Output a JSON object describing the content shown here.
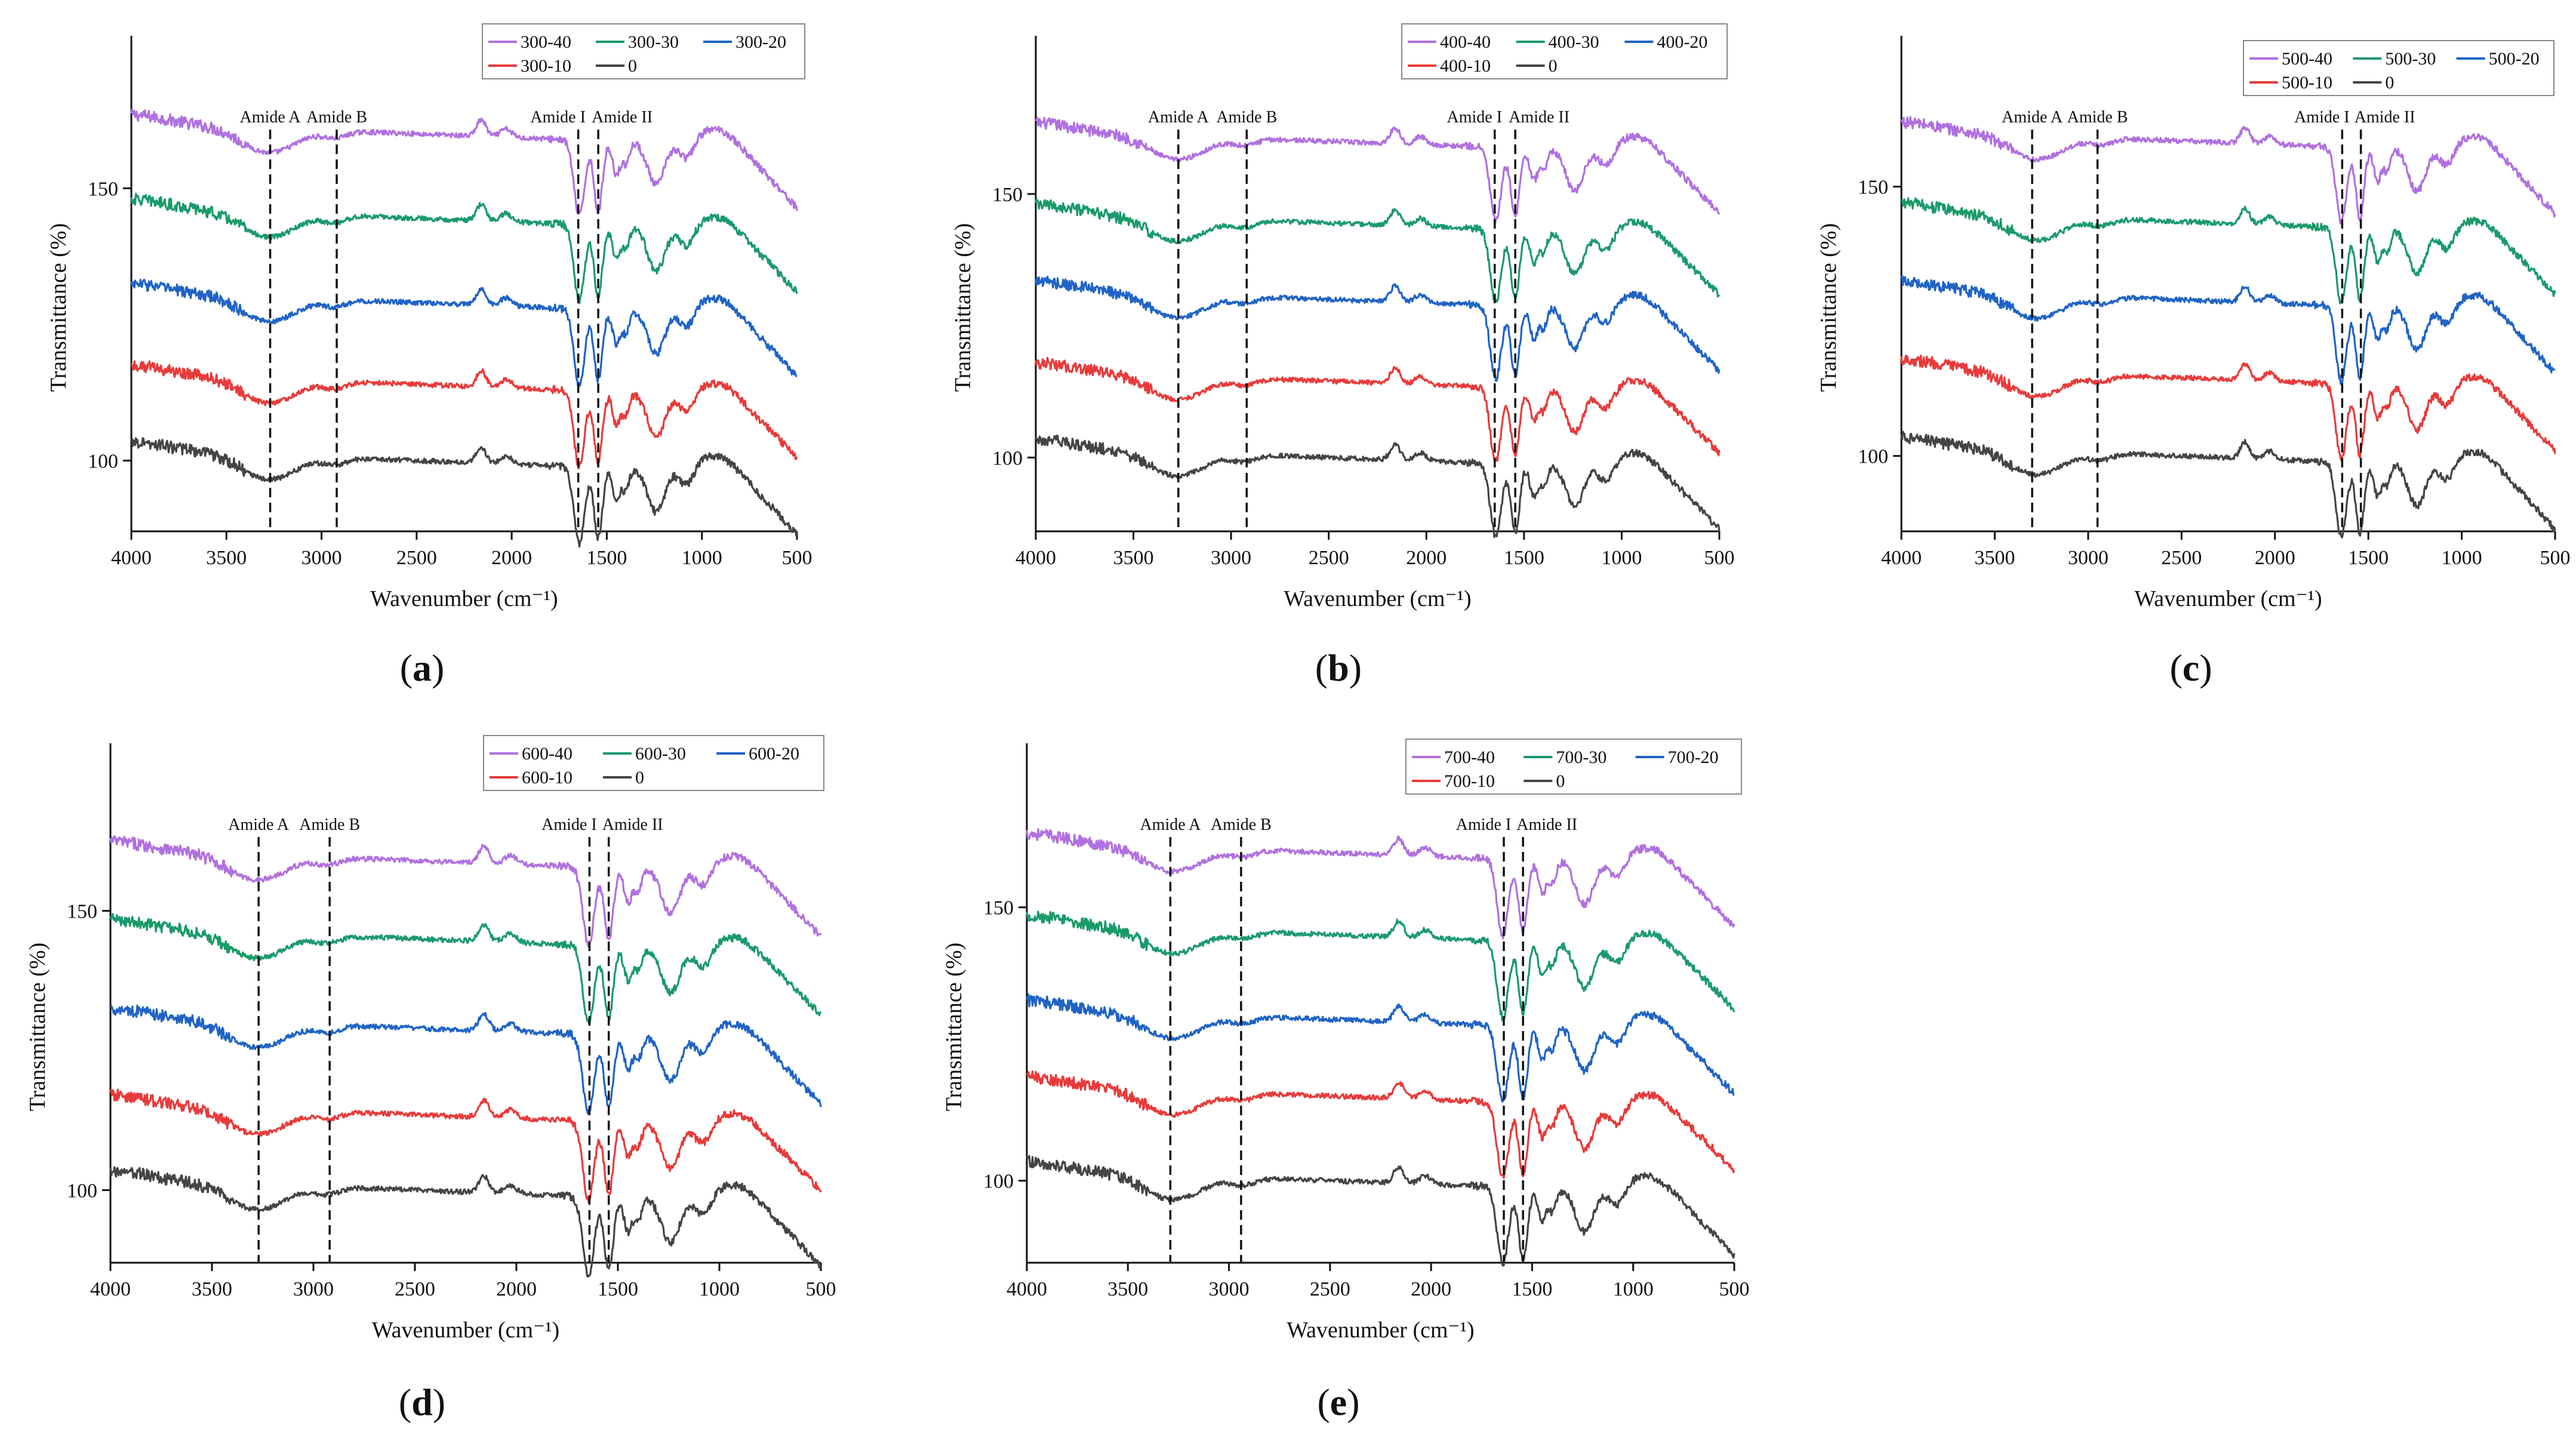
{
  "figure": {
    "description_count": 5
  },
  "chart_data": [
    {
      "type": "line",
      "panel": "a",
      "caption": "(a)",
      "caption_letter": "a",
      "xlabel": "Wavenumber (cm⁻¹)",
      "ylabel": "Transmittance (%)",
      "xlim": [
        4000,
        500
      ],
      "ylim": [
        87,
        178
      ],
      "x_ticks": [
        4000,
        3500,
        3000,
        2500,
        2000,
        1500,
        1000,
        500
      ],
      "y_ticks": [
        100,
        150
      ],
      "annotations": [
        {
          "label": "Amide A",
          "x": 3270
        },
        {
          "label": "Amide B",
          "x": 2920
        },
        {
          "label": "Amide I",
          "x": 1650
        },
        {
          "label": "Amide II",
          "x": 1545
        }
      ],
      "series": [
        {
          "name": "300-40",
          "color": "#b070e0",
          "baseline": 160
        },
        {
          "name": "300-30",
          "color": "#1a9a6a",
          "baseline": 144.5
        },
        {
          "name": "300-20",
          "color": "#1f63c6",
          "baseline": 129
        },
        {
          "name": "300-10",
          "color": "#e83a3a",
          "baseline": 114
        },
        {
          "name": "0",
          "color": "#444444",
          "baseline": 100
        }
      ]
    },
    {
      "type": "line",
      "panel": "b",
      "caption": "(b)",
      "caption_letter": "b",
      "xlabel": "Wavenumber (cm⁻¹)",
      "ylabel": "Transmittance (%)",
      "xlim": [
        4000,
        500
      ],
      "ylim": [
        86,
        180
      ],
      "x_ticks": [
        4000,
        3500,
        3000,
        2500,
        2000,
        1500,
        1000,
        500
      ],
      "y_ticks": [
        100,
        150
      ],
      "annotations": [
        {
          "label": "Amide A",
          "x": 3270
        },
        {
          "label": "Amide B",
          "x": 2920
        },
        {
          "label": "Amide I",
          "x": 1650
        },
        {
          "label": "Amide II",
          "x": 1545
        }
      ],
      "series": [
        {
          "name": "400-40",
          "color": "#b070e0",
          "baseline": 160
        },
        {
          "name": "400-30",
          "color": "#1a9a6a",
          "baseline": 144.5
        },
        {
          "name": "400-20",
          "color": "#1f63c6",
          "baseline": 130
        },
        {
          "name": "400-10",
          "color": "#e83a3a",
          "baseline": 114.5
        },
        {
          "name": "0",
          "color": "#444444",
          "baseline": 100
        }
      ]
    },
    {
      "type": "line",
      "panel": "c",
      "caption": "(c)",
      "caption_letter": "c",
      "xlabel": "Wavenumber (cm⁻¹)",
      "ylabel": "Transmittance (%)",
      "xlim": [
        4000,
        500
      ],
      "ylim": [
        86,
        178
      ],
      "x_ticks": [
        4000,
        3500,
        3000,
        2500,
        2000,
        1500,
        1000,
        500
      ],
      "y_ticks": [
        100,
        150
      ],
      "annotations": [
        {
          "label": "Amide A",
          "x": 3300
        },
        {
          "label": "Amide B",
          "x": 2950
        },
        {
          "label": "Amide I",
          "x": 1640
        },
        {
          "label": "Amide II",
          "x": 1540
        }
      ],
      "series": [
        {
          "name": "500-40",
          "color": "#b070e0",
          "baseline": 158.5
        },
        {
          "name": "500-30",
          "color": "#1a9a6a",
          "baseline": 143.5
        },
        {
          "name": "500-20",
          "color": "#1f63c6",
          "baseline": 129
        },
        {
          "name": "500-10",
          "color": "#e83a3a",
          "baseline": 114.5
        },
        {
          "name": "0",
          "color": "#444444",
          "baseline": 100
        }
      ]
    },
    {
      "type": "line",
      "panel": "d",
      "caption": "(d)",
      "caption_letter": "d",
      "xlabel": "Wavenumber (cm⁻¹)",
      "ylabel": "Transmittance (%)",
      "xlim": [
        4000,
        500
      ],
      "ylim": [
        87,
        180
      ],
      "x_ticks": [
        4000,
        3500,
        3000,
        2500,
        2000,
        1500,
        1000,
        500
      ],
      "y_ticks": [
        100,
        150
      ],
      "annotations": [
        {
          "label": "Amide A",
          "x": 3270
        },
        {
          "label": "Amide B",
          "x": 2920
        },
        {
          "label": "Amide I",
          "x": 1640
        },
        {
          "label": "Amide II",
          "x": 1545
        }
      ],
      "series": [
        {
          "name": "600-40",
          "color": "#b070e0",
          "baseline": 159
        },
        {
          "name": "600-30",
          "color": "#1a9a6a",
          "baseline": 145
        },
        {
          "name": "600-20",
          "color": "#1f63c6",
          "baseline": 129
        },
        {
          "name": "600-10",
          "color": "#e83a3a",
          "baseline": 113.5
        },
        {
          "name": "0",
          "color": "#444444",
          "baseline": 100
        }
      ]
    },
    {
      "type": "line",
      "panel": "e",
      "caption": "(e)",
      "caption_letter": "e",
      "xlabel": "Wavenumber (cm⁻¹)",
      "ylabel": "Transmittance (%)",
      "xlim": [
        4000,
        500
      ],
      "ylim": [
        85,
        180
      ],
      "x_ticks": [
        4000,
        3500,
        3000,
        2500,
        2000,
        1500,
        1000,
        500
      ],
      "y_ticks": [
        100,
        150
      ],
      "annotations": [
        {
          "label": "Amide A",
          "x": 3290
        },
        {
          "label": "Amide B",
          "x": 2940
        },
        {
          "label": "Amide I",
          "x": 1640
        },
        {
          "label": "Amide II",
          "x": 1545
        }
      ],
      "series": [
        {
          "name": "700-40",
          "color": "#b070e0",
          "baseline": 160
        },
        {
          "name": "700-30",
          "color": "#1a9a6a",
          "baseline": 145
        },
        {
          "name": "700-20",
          "color": "#1f63c6",
          "baseline": 129.5
        },
        {
          "name": "700-10",
          "color": "#e83a3a",
          "baseline": 115.5
        },
        {
          "name": "0",
          "color": "#444444",
          "baseline": 100
        }
      ]
    }
  ]
}
